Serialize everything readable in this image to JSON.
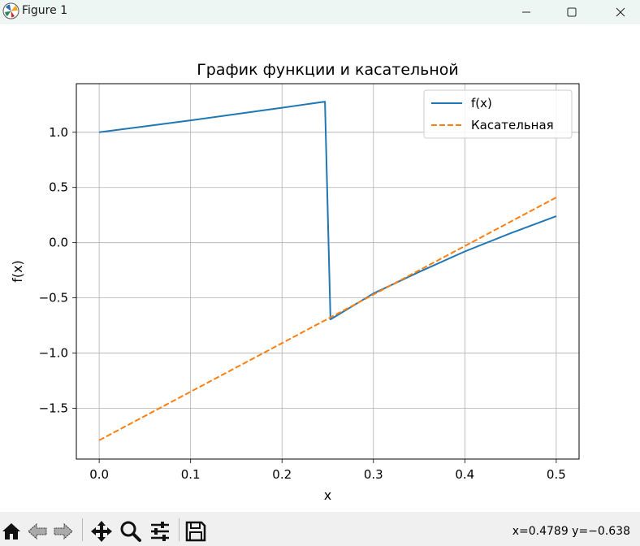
{
  "window": {
    "title": "Figure 1"
  },
  "toolbar": {
    "coords_readout": "x=0.4789 y=−0.638",
    "icons": [
      "home-icon",
      "back-arrow-icon",
      "forward-arrow-icon",
      "pan-icon",
      "zoom-icon",
      "configure-subplots-icon",
      "save-icon"
    ]
  },
  "chart_data": {
    "type": "line",
    "title": "График функции и касательной",
    "xlabel": "x",
    "ylabel": "f(x)",
    "xlim": [
      -0.025,
      0.525
    ],
    "ylim": [
      -1.96,
      1.44
    ],
    "xticks": [
      0.0,
      0.1,
      0.2,
      0.3,
      0.4,
      0.5
    ],
    "xtick_labels": [
      "0.0",
      "0.1",
      "0.2",
      "0.3",
      "0.4",
      "0.5"
    ],
    "yticks": [
      1.0,
      0.5,
      0.0,
      -0.5,
      -1.0,
      -1.5
    ],
    "ytick_labels": [
      "1.0",
      "0.5",
      "0.0",
      "−0.5",
      "−1.0",
      "−1.5"
    ],
    "grid": true,
    "legend_position": "upper right",
    "series": [
      {
        "name": "f(x)",
        "color": "#1f77b4",
        "style": "solid",
        "x": [
          0.0,
          0.05,
          0.1,
          0.15,
          0.2,
          0.247,
          0.253,
          0.3,
          0.35,
          0.4,
          0.45,
          0.5
        ],
        "y": [
          1.0,
          1.054,
          1.108,
          1.165,
          1.222,
          1.277,
          -0.695,
          -0.46,
          -0.265,
          -0.08,
          0.085,
          0.24
        ]
      },
      {
        "name": "Касательная",
        "color": "#ff7f0e",
        "style": "dashed",
        "x": [
          0.0,
          0.5
        ],
        "y": [
          -1.79,
          0.41
        ]
      }
    ]
  }
}
